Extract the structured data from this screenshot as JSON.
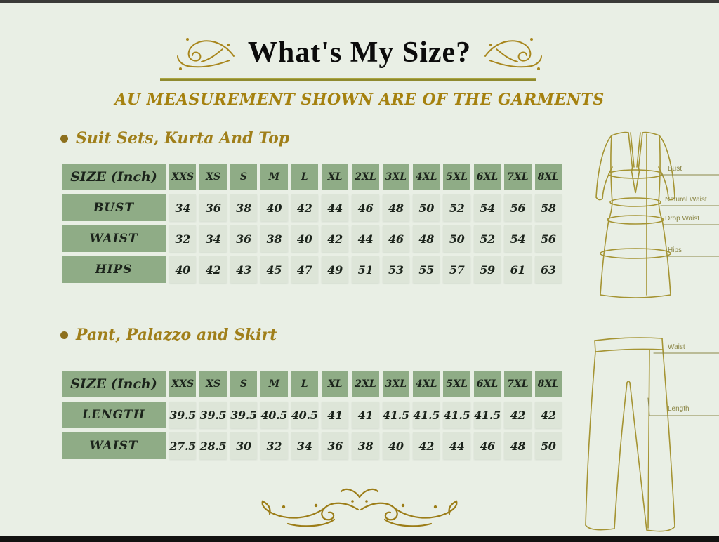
{
  "header": {
    "title": "What's My Size?",
    "subtitle": "AU MEASUREMENT SHOWN ARE OF THE GARMENTS"
  },
  "colors": {
    "background": "#e9efe5",
    "gold_text": "#a5810f",
    "olive_divider": "#aaa542",
    "green_cell": "#8fac86",
    "light_cell": "#dde5d8",
    "table_text": "#1b231b",
    "illustration_stroke": "#a59433"
  },
  "icons": {
    "title_flourish_left": "scroll-flourish",
    "title_flourish_right": "scroll-flourish",
    "footer_ornament": "scroll-ornament",
    "section_bullet": "bullet-dot"
  },
  "sections": [
    {
      "heading": "Suit Sets, Kurta And Top",
      "table": {
        "corner_label": "SIZE (Inch)",
        "columns": [
          "XXS",
          "XS",
          "S",
          "M",
          "L",
          "XL",
          "2XL",
          "3XL",
          "4XL",
          "5XL",
          "6XL",
          "7XL",
          "8XL"
        ],
        "rows": [
          {
            "label": "BUST",
            "values": [
              "34",
              "36",
              "38",
              "40",
              "42",
              "44",
              "46",
              "48",
              "50",
              "52",
              "54",
              "56",
              "58"
            ]
          },
          {
            "label": "WAIST",
            "values": [
              "32",
              "34",
              "36",
              "38",
              "40",
              "42",
              "44",
              "46",
              "48",
              "50",
              "52",
              "54",
              "56"
            ]
          },
          {
            "label": "HIPS",
            "values": [
              "40",
              "42",
              "43",
              "45",
              "47",
              "49",
              "51",
              "53",
              "55",
              "57",
              "59",
              "61",
              "63"
            ]
          }
        ]
      },
      "figure": {
        "name": "kurta-top-diagram",
        "labels": [
          "Bust",
          "Natural Waist",
          "Drop Waist",
          "Hips"
        ]
      }
    },
    {
      "heading": "Pant, Palazzo and Skirt",
      "table": {
        "corner_label": "SIZE (Inch)",
        "columns": [
          "XXS",
          "XS",
          "S",
          "M",
          "L",
          "XL",
          "2XL",
          "3XL",
          "4XL",
          "5XL",
          "6XL",
          "7XL",
          "8XL"
        ],
        "rows": [
          {
            "label": "LENGTH",
            "values": [
              "39.5",
              "39.5",
              "39.5",
              "40.5",
              "40.5",
              "41",
              "41",
              "41.5",
              "41.5",
              "41.5",
              "41.5",
              "42",
              "42"
            ]
          },
          {
            "label": "WAIST",
            "values": [
              "27.5",
              "28.5",
              "30",
              "32",
              "34",
              "36",
              "38",
              "40",
              "42",
              "44",
              "46",
              "48",
              "50"
            ]
          }
        ]
      },
      "figure": {
        "name": "palazzo-pant-diagram",
        "labels": [
          "Waist",
          "Length"
        ]
      }
    }
  ]
}
